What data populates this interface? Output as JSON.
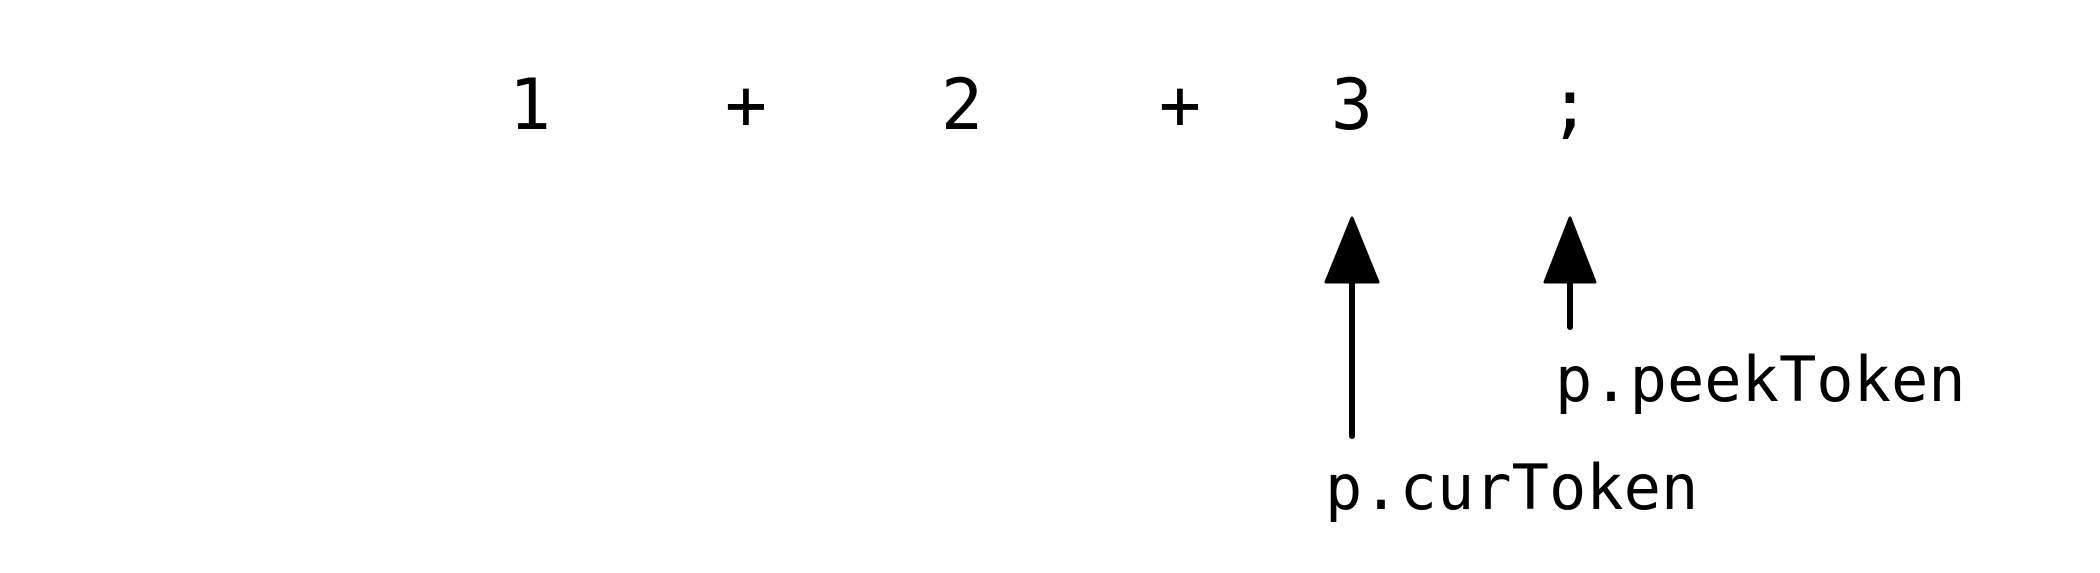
{
  "tokens": [
    {
      "text": "1"
    },
    {
      "text": "+"
    },
    {
      "text": "2"
    },
    {
      "text": "+"
    },
    {
      "text": "3"
    },
    {
      "text": ";"
    }
  ],
  "pointers": {
    "cur": {
      "label": "p.curToken",
      "points_to_token_index": 4
    },
    "peek": {
      "label": "p.peekToken",
      "points_to_token_index": 5
    }
  },
  "colors": {
    "ink": "#000000",
    "background": "#ffffff"
  }
}
